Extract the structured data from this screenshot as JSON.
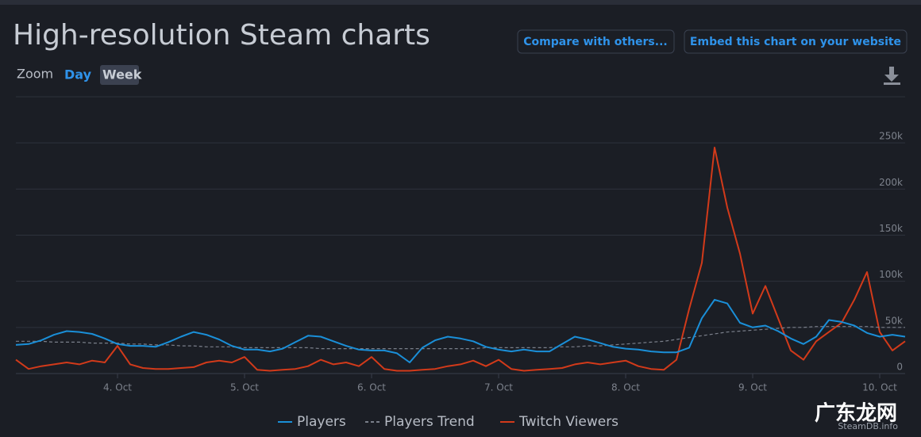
{
  "header": {
    "title": "High-resolution Steam charts",
    "buttons": [
      "Compare with others...",
      "Embed this chart on your website"
    ],
    "zoom_label": "Zoom",
    "zoom_options": [
      "Day",
      "Week"
    ]
  },
  "credit": "SteamDB.info",
  "watermark": "广东龙网",
  "chart_data": {
    "type": "line",
    "x": [
      3.2,
      3.3,
      3.4,
      3.5,
      3.6,
      3.7,
      3.8,
      3.9,
      4.0,
      4.1,
      4.2,
      4.3,
      4.4,
      4.5,
      4.6,
      4.7,
      4.8,
      4.9,
      5.0,
      5.1,
      5.2,
      5.3,
      5.4,
      5.5,
      5.6,
      5.7,
      5.8,
      5.9,
      6.0,
      6.1,
      6.2,
      6.3,
      6.4,
      6.5,
      6.6,
      6.7,
      6.8,
      6.9,
      7.0,
      7.1,
      7.2,
      7.3,
      7.4,
      7.5,
      7.6,
      7.7,
      7.8,
      7.9,
      8.0,
      8.1,
      8.2,
      8.3,
      8.4,
      8.5,
      8.6,
      8.7,
      8.8,
      8.9,
      9.0,
      9.1,
      9.2,
      9.3,
      9.4,
      9.5,
      9.6,
      9.7,
      9.8,
      9.9,
      10.0,
      10.1,
      10.2
    ],
    "xlim": [
      3.2,
      10.2
    ],
    "xticks": [
      {
        "value": 4,
        "label": "4. Oct"
      },
      {
        "value": 5,
        "label": "5. Oct"
      },
      {
        "value": 6,
        "label": "6. Oct"
      },
      {
        "value": 7,
        "label": "7. Oct"
      },
      {
        "value": 8,
        "label": "8. Oct"
      },
      {
        "value": 9,
        "label": "9. Oct"
      },
      {
        "value": 10,
        "label": "10. Oct"
      }
    ],
    "ylim": [
      0,
      300000
    ],
    "yticks": [
      0,
      {
        "value": 50000,
        "label": "50k"
      },
      {
        "value": 100000,
        "label": "100k"
      },
      {
        "value": 150000,
        "label": "150k"
      },
      {
        "value": 200000,
        "label": "200k"
      },
      {
        "value": 250000,
        "label": "250k"
      }
    ],
    "grid": true,
    "legend": "bottom",
    "series": [
      {
        "name": "Players",
        "color": "#1a8fd8",
        "values": [
          31000,
          32000,
          36000,
          42000,
          46000,
          45000,
          43000,
          38000,
          32000,
          30000,
          30000,
          29000,
          34000,
          40000,
          45000,
          42000,
          37000,
          30000,
          26000,
          26000,
          24000,
          27000,
          34000,
          41000,
          40000,
          35000,
          30000,
          26000,
          25000,
          25000,
          22000,
          12000,
          28000,
          36000,
          40000,
          38000,
          35000,
          29000,
          26000,
          24000,
          26000,
          24000,
          24000,
          32000,
          40000,
          37000,
          33000,
          29000,
          27000,
          26000,
          24000,
          23000,
          23000,
          28000,
          60000,
          80000,
          76000,
          55000,
          50000,
          52000,
          46000,
          38000,
          32000,
          40000,
          58000,
          56000,
          52000,
          44000,
          40000,
          42000,
          40000
        ]
      },
      {
        "name": "Players Trend",
        "color": "#7a7f8a",
        "dashed": true,
        "values": [
          35000,
          35000,
          35000,
          34000,
          34000,
          34000,
          33000,
          33000,
          33000,
          32000,
          32000,
          31000,
          31000,
          30000,
          30000,
          29000,
          29000,
          29000,
          28000,
          28000,
          28000,
          28000,
          28000,
          28000,
          27000,
          27000,
          27000,
          27000,
          27000,
          27000,
          27000,
          27000,
          27000,
          27000,
          27000,
          27000,
          27000,
          28000,
          28000,
          28000,
          28000,
          28000,
          28000,
          29000,
          29000,
          30000,
          30000,
          31000,
          32000,
          33000,
          34000,
          35000,
          37000,
          39000,
          41000,
          43000,
          45000,
          46000,
          47000,
          48000,
          49000,
          50000,
          50000,
          51000,
          51000,
          51000,
          51000,
          51000,
          50000,
          50000,
          50000
        ]
      },
      {
        "name": "Twitch Viewers",
        "color": "#d23a1a",
        "values": [
          15000,
          5000,
          8000,
          10000,
          12000,
          10000,
          14000,
          12000,
          30000,
          10000,
          6000,
          5000,
          5000,
          6000,
          7000,
          12000,
          14000,
          12000,
          18000,
          4000,
          3000,
          4000,
          5000,
          8000,
          15000,
          10000,
          12000,
          8000,
          18000,
          5000,
          3000,
          3000,
          4000,
          5000,
          8000,
          10000,
          14000,
          8000,
          15000,
          5000,
          3000,
          4000,
          5000,
          6000,
          10000,
          12000,
          10000,
          12000,
          14000,
          8000,
          5000,
          4000,
          15000,
          70000,
          120000,
          245000,
          180000,
          130000,
          65000,
          95000,
          60000,
          25000,
          15000,
          35000,
          45000,
          55000,
          80000,
          110000,
          45000,
          25000,
          35000
        ]
      }
    ]
  }
}
